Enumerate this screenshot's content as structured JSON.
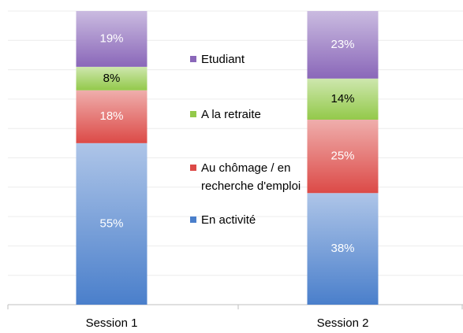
{
  "chart_data": {
    "type": "stacked-bar",
    "categories": [
      "Session 1",
      "Session 2"
    ],
    "series": [
      {
        "name": "En activité",
        "color": "#4a7fcb",
        "values": [
          55,
          38
        ],
        "value_labels": [
          "55%",
          "38%"
        ]
      },
      {
        "name": "Au chômage / en recherche d'emploi",
        "color": "#dc4a47",
        "values": [
          18,
          25
        ],
        "value_labels": [
          "18%",
          "25%"
        ]
      },
      {
        "name": "A la retraite",
        "color": "#93c94a",
        "values": [
          8,
          14
        ],
        "value_labels": [
          "8%",
          "14%"
        ]
      },
      {
        "name": "Etudiant",
        "color": "#8a67b9",
        "values": [
          19,
          23
        ],
        "value_labels": [
          "19%",
          "23%"
        ]
      }
    ],
    "ylim": [
      0,
      100
    ],
    "yticks": [
      0,
      10,
      20,
      30,
      40,
      50,
      60,
      70,
      80,
      90,
      100
    ],
    "grid": true
  }
}
